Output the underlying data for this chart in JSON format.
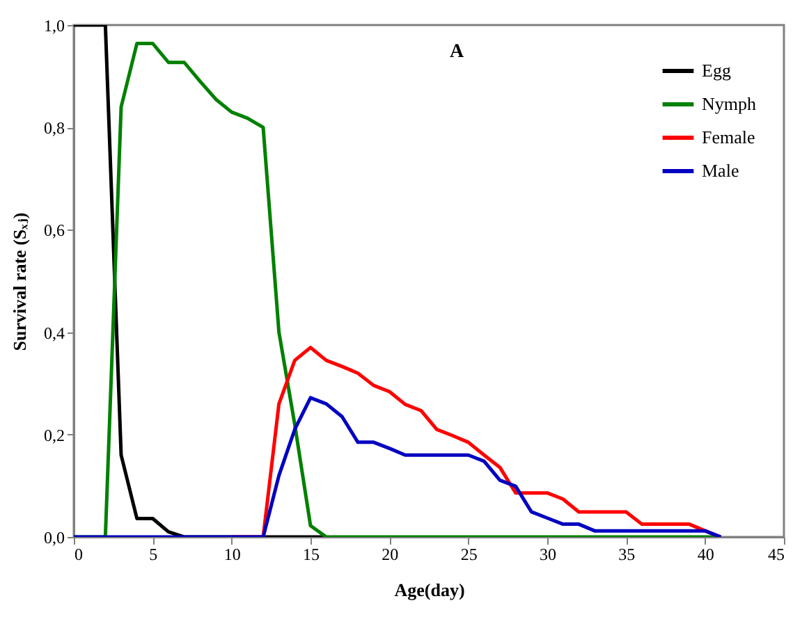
{
  "chart_data": {
    "type": "line",
    "title": "A",
    "xlabel": "Age(day)",
    "ylabel": "Survival rate (Sₓⱼ)",
    "x": [
      0,
      1,
      2,
      3,
      4,
      5,
      6,
      7,
      8,
      9,
      10,
      11,
      12,
      13,
      14,
      15,
      16,
      17,
      18,
      19,
      20,
      21,
      22,
      23,
      24,
      25,
      26,
      27,
      28,
      29,
      30,
      31,
      32,
      33,
      34,
      35,
      36,
      37,
      38,
      39,
      40,
      41
    ],
    "series": [
      {
        "name": "Egg",
        "color": "#000000",
        "x": [
          0,
          1,
          2,
          3,
          4,
          5,
          6,
          7,
          8,
          9,
          10,
          11,
          12,
          13,
          14,
          15,
          16
        ],
        "values": [
          1,
          1,
          1,
          0.16,
          0.036,
          0.036,
          0.01,
          0,
          0,
          0,
          0,
          0,
          0,
          0,
          0,
          0,
          0
        ]
      },
      {
        "name": "Nymph",
        "color": "#008000",
        "values": [
          0,
          0,
          0,
          0.84,
          0.964,
          0.964,
          0.927,
          0.927,
          0.89,
          0.855,
          0.83,
          0.818,
          0.8,
          0.4,
          0.22,
          0.022,
          0,
          0,
          0,
          0,
          0,
          0,
          0,
          0,
          0,
          0,
          0,
          0,
          0,
          0,
          0,
          0,
          0,
          0,
          0,
          0,
          0,
          0,
          0,
          0,
          0,
          0
        ]
      },
      {
        "name": "Female",
        "color": "#ff0000",
        "values": [
          null,
          null,
          null,
          null,
          null,
          null,
          null,
          null,
          null,
          null,
          0,
          0,
          0,
          0.26,
          0.345,
          0.37,
          0.345,
          0.333,
          0.32,
          0.296,
          0.284,
          0.259,
          0.247,
          0.21,
          0.198,
          0.185,
          0.16,
          0.136,
          0.086,
          0.086,
          0.086,
          0.074,
          0.049,
          0.049,
          0.049,
          0.049,
          0.025,
          0.025,
          0.025,
          0.025,
          0.012,
          0
        ]
      },
      {
        "name": "Male",
        "color": "#0000c0",
        "values": [
          0,
          0,
          0,
          0,
          0,
          0,
          0,
          0,
          0,
          0,
          0,
          0,
          0,
          0.12,
          0.21,
          0.272,
          0.26,
          0.235,
          0.185,
          0.185,
          0.173,
          0.16,
          0.16,
          0.16,
          0.16,
          0.16,
          0.148,
          0.111,
          0.099,
          0.049,
          0.037,
          0.025,
          0.025,
          0.012,
          0.012,
          0.012,
          0.012,
          0.012,
          0.012,
          0.012,
          0.012,
          0
        ]
      }
    ],
    "xlim": [
      0,
      45
    ],
    "xticks": [
      0,
      5,
      10,
      15,
      20,
      25,
      30,
      35,
      40,
      45
    ],
    "ylim": [
      0,
      1
    ],
    "yticks": [
      {
        "value": 0,
        "label": "0,0"
      },
      {
        "value": 0.2,
        "label": "0,2"
      },
      {
        "value": 0.4,
        "label": "0,4"
      },
      {
        "value": 0.6,
        "label": "0,6"
      },
      {
        "value": 0.8,
        "label": "0,8"
      },
      {
        "value": 1,
        "label": "1,0"
      }
    ],
    "legend": "top right",
    "grid": false,
    "marker": "none",
    "line_style": "solid"
  }
}
